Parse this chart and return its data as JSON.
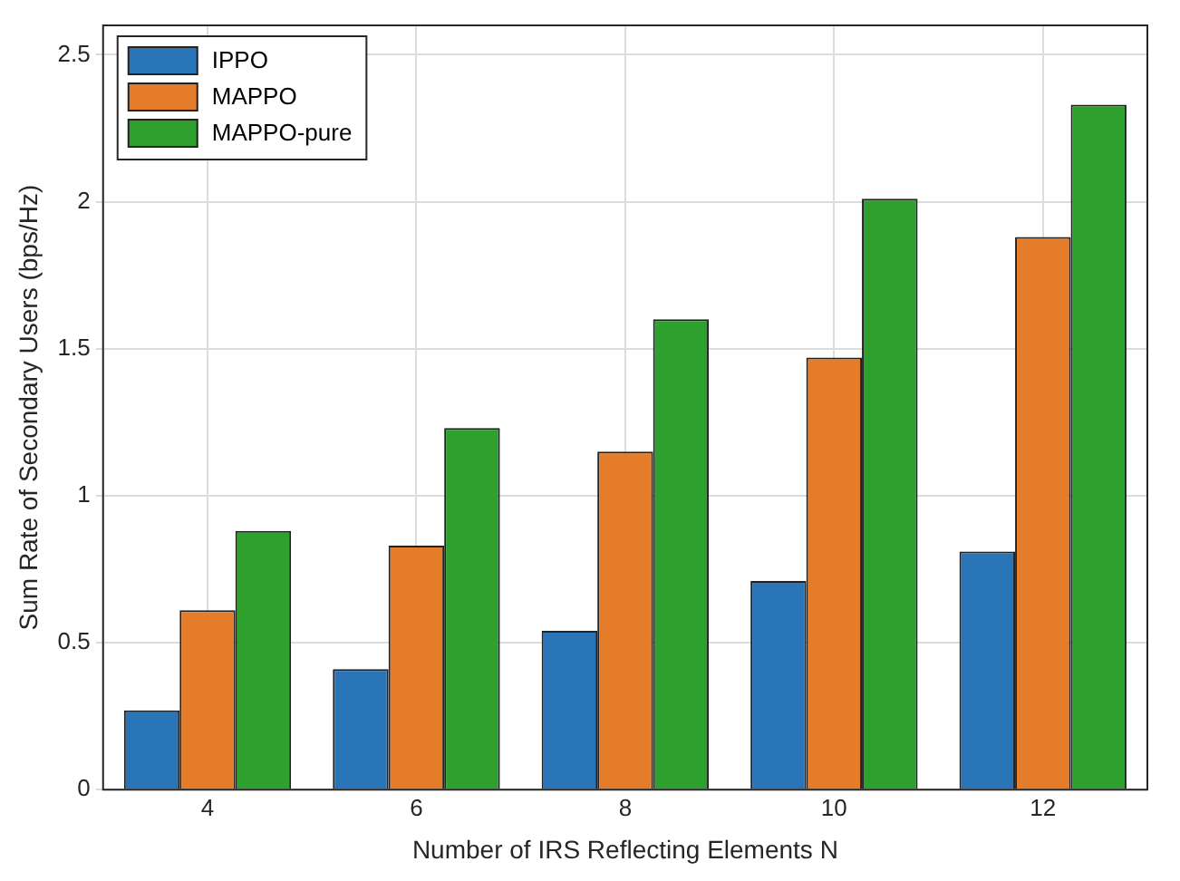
{
  "chart_data": {
    "type": "bar",
    "xlabel": "Number of IRS Reflecting Elements N",
    "ylabel": "Sum Rate of Secondary Users (bps/Hz)",
    "categories": [
      "4",
      "6",
      "8",
      "10",
      "12"
    ],
    "series": [
      {
        "name": "IPPO",
        "color": "#2a74b8",
        "values": [
          0.27,
          0.41,
          0.54,
          0.71,
          0.81
        ]
      },
      {
        "name": "MAPPO",
        "color": "#e47c2a",
        "values": [
          0.61,
          0.83,
          1.15,
          1.47,
          1.88
        ]
      },
      {
        "name": "MAPPO-pure",
        "color": "#2ea02e",
        "values": [
          0.88,
          1.23,
          1.6,
          2.01,
          2.33
        ]
      }
    ],
    "ylim": [
      0,
      2.6
    ],
    "yticks": [
      0,
      0.5,
      1,
      1.5,
      2,
      2.5
    ],
    "grid": true,
    "legend": "top left"
  }
}
